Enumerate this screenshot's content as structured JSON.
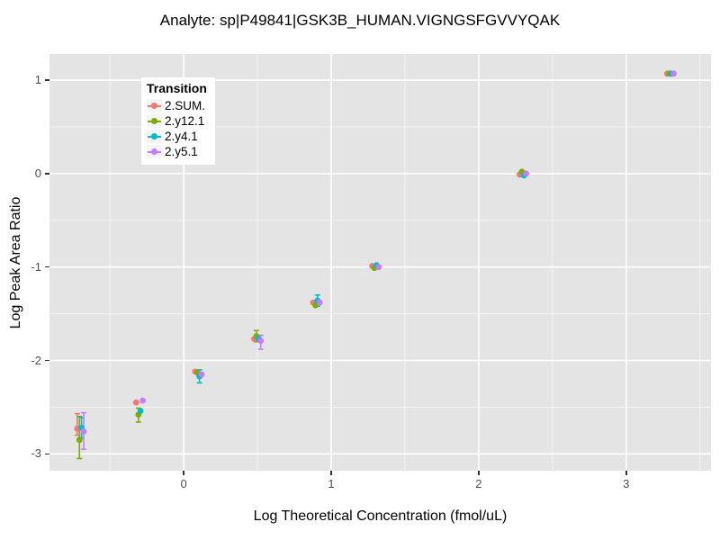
{
  "chart_data": {
    "type": "scatter",
    "title": "Analyte: sp|P49841|GSK3B_HUMAN.VIGNGSFGVVYQAK",
    "xlabel": "Log Theoretical Concentration (fmol/uL)",
    "ylabel": "Log Peak Area Ratio",
    "xlim": [
      -0.91,
      3.575
    ],
    "ylim": [
      -3.18,
      1.28
    ],
    "grid": true,
    "panel_bg": "#e4e4e4",
    "grid_color": "#ffffff",
    "tick_color": "#333333",
    "tick_label_color": "#4d4d4d",
    "x_major_ticks": [
      0,
      1,
      2,
      3
    ],
    "x_tick_labels": [
      "0",
      "1",
      "2",
      "3"
    ],
    "x_minor_ticks": [
      -0.5,
      0.5,
      1.5,
      2.5,
      3.5
    ],
    "y_major_ticks": [
      1,
      0,
      -1,
      -2,
      -3
    ],
    "y_tick_labels": [
      "1",
      "0",
      "-1",
      "-2",
      "-3"
    ],
    "y_minor_ticks": [
      0.5,
      -0.5,
      -1.5,
      -2.5
    ],
    "x_points": [
      -0.7,
      -0.3,
      0.1,
      0.5,
      0.9,
      1.3,
      2.3,
      3.3
    ],
    "legend": {
      "title": "Transition",
      "position": "top-left-inside"
    },
    "series": [
      {
        "name": "2.SUM.",
        "color": "#F8766D",
        "dodge": -0.022,
        "points": [
          {
            "x": -0.7,
            "y": -2.73,
            "ymin": -2.8,
            "ymax": -2.57
          },
          {
            "x": -0.3,
            "y": -2.45
          },
          {
            "x": 0.1,
            "y": -2.12
          },
          {
            "x": 0.5,
            "y": -1.77
          },
          {
            "x": 0.9,
            "y": -1.38
          },
          {
            "x": 1.3,
            "y": -0.99
          },
          {
            "x": 2.3,
            "y": -0.01
          },
          {
            "x": 3.3,
            "y": 1.07
          }
        ]
      },
      {
        "name": "2.y12.1",
        "color": "#7CAE00",
        "dodge": -0.007,
        "points": [
          {
            "x": -0.7,
            "y": -2.85,
            "ymin": -3.05,
            "ymax": -2.6
          },
          {
            "x": -0.3,
            "y": -2.58,
            "ymin": -2.66,
            "ymax": -2.51
          },
          {
            "x": 0.1,
            "y": -2.13
          },
          {
            "x": 0.5,
            "y": -1.74,
            "ymin": -1.8,
            "ymax": -1.68
          },
          {
            "x": 0.9,
            "y": -1.41
          },
          {
            "x": 1.3,
            "y": -1.01
          },
          {
            "x": 2.3,
            "y": 0.02
          },
          {
            "x": 3.3,
            "y": 1.07
          }
        ]
      },
      {
        "name": "2.y4.1",
        "color": "#00BFC4",
        "dodge": 0.007,
        "points": [
          {
            "x": -0.7,
            "y": -2.72,
            "ymin": -2.83,
            "ymax": -2.61
          },
          {
            "x": -0.3,
            "y": -2.54
          },
          {
            "x": 0.1,
            "y": -2.17,
            "ymin": -2.24,
            "ymax": -2.1
          },
          {
            "x": 0.5,
            "y": -1.77
          },
          {
            "x": 0.9,
            "y": -1.36,
            "ymin": -1.42,
            "ymax": -1.3
          },
          {
            "x": 1.3,
            "y": -0.98
          },
          {
            "x": 2.3,
            "y": -0.02
          },
          {
            "x": 3.3,
            "y": 1.07
          }
        ]
      },
      {
        "name": "2.y5.1",
        "color": "#C77CFF",
        "dodge": 0.022,
        "points": [
          {
            "x": -0.7,
            "y": -2.76,
            "ymin": -2.95,
            "ymax": -2.56
          },
          {
            "x": -0.3,
            "y": -2.43
          },
          {
            "x": 0.1,
            "y": -2.15
          },
          {
            "x": 0.5,
            "y": -1.79,
            "ymin": -1.88,
            "ymax": -1.73
          },
          {
            "x": 0.9,
            "y": -1.38
          },
          {
            "x": 1.3,
            "y": -1.0
          },
          {
            "x": 2.3,
            "y": 0.0
          },
          {
            "x": 3.3,
            "y": 1.07
          }
        ]
      }
    ]
  }
}
